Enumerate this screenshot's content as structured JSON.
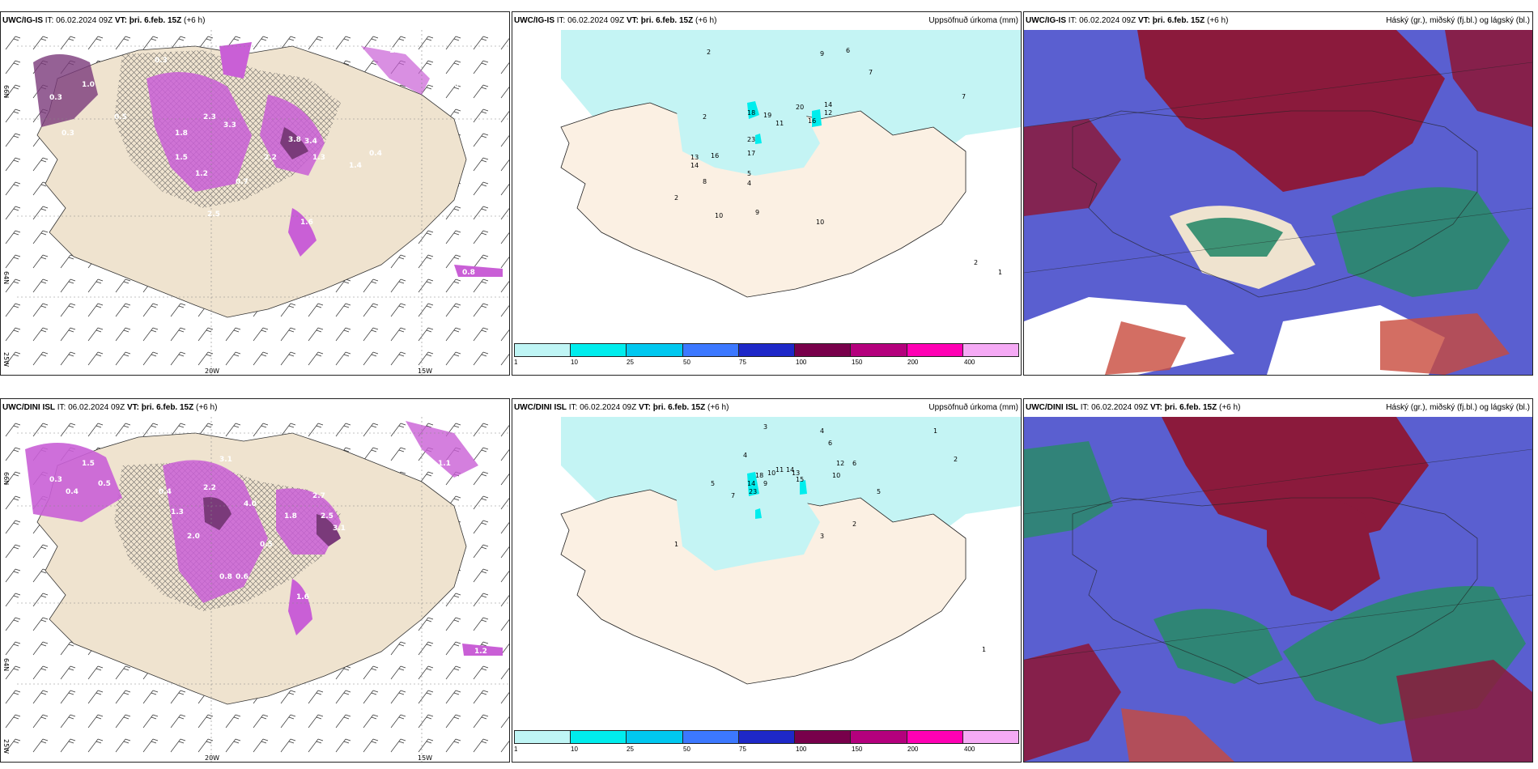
{
  "panels": [
    {
      "model": "UWC/IG-IS",
      "it": "IT: 06.02.2024 09Z",
      "vt_label": "VT:",
      "vt": "þri. 6.feb. 15Z",
      "lead": "(+6 h)",
      "title": ""
    },
    {
      "model": "UWC/IG-IS",
      "it": "IT: 06.02.2024 09Z",
      "vt_label": "VT:",
      "vt": "þri. 6.feb. 15Z",
      "lead": "(+6 h)",
      "title": "Uppsöfnuð úrkoma (mm)"
    },
    {
      "model": "UWC/IG-IS",
      "it": "IT: 06.02.2024 09Z",
      "vt_label": "VT:",
      "vt": "þri. 6.feb. 15Z",
      "lead": "(+6 h)",
      "title": "Háský (gr.), miðský (fj.bl.) og lágský (bl.)"
    },
    {
      "model": "UWC/DINI ISL",
      "it": "IT: 06.02.2024 09Z",
      "vt_label": "VT:",
      "vt": "þri. 6.feb. 15Z",
      "lead": "(+6 h)",
      "title": ""
    },
    {
      "model": "UWC/DINI ISL",
      "it": "IT: 06.02.2024 09Z",
      "vt_label": "VT:",
      "vt": "þri. 6.feb. 15Z",
      "lead": "(+6 h)",
      "title": "Uppsöfnuð úrkoma (mm)"
    },
    {
      "model": "UWC/DINI ISL",
      "it": "IT: 06.02.2024 09Z",
      "vt_label": "VT:",
      "vt": "þri. 6.feb. 15Z",
      "lead": "(+6 h)",
      "title": "Háský (gr.), miðský (fj.bl.) og lágský (bl.)"
    }
  ],
  "grid_labels": {
    "lon_20": "20W",
    "lon_15": "15W",
    "lat_66": "66N",
    "lat_64": "64N",
    "lat_25w": "25W"
  },
  "precip_colorbar": {
    "colors": [
      "#bff5f5",
      "#00eded",
      "#00c8f0",
      "#3c78ff",
      "#1e28c8",
      "#78004b",
      "#b4007d",
      "#ff00b4",
      "#f5aaf5"
    ],
    "labels": [
      "1",
      "10",
      "25",
      "50",
      "75",
      "100",
      "150",
      "200",
      "400"
    ]
  },
  "snow_values_top": [
    "0.3",
    "1.0",
    "0.3",
    "1.8",
    "2.3",
    "3.3",
    "3.8",
    "3.4",
    "2.2",
    "1.3",
    "0.4",
    "1.4",
    "2.5",
    "1.6",
    "1.0",
    "0.8",
    "0.5",
    "1.5",
    "1.2",
    "0.7",
    "0.3",
    "1.8",
    "1.0"
  ],
  "snow_values_bottom": [
    "0.3",
    "0.4",
    "1.5",
    "0.5",
    "3.1",
    "2.2",
    "4.0",
    "2.5",
    "3.1",
    "1.8",
    "2.0",
    "1.3",
    "0.6",
    "1.6",
    "0.5",
    "1.2",
    "0.4",
    "0.8",
    "2.7",
    "1.1"
  ],
  "precip_values_top": [
    "2",
    "9",
    "6",
    "7",
    "7",
    "2",
    "18",
    "19",
    "20",
    "16",
    "14",
    "12",
    "23",
    "13",
    "8",
    "16",
    "14",
    "17",
    "5",
    "4",
    "2",
    "10",
    "9",
    "10",
    "11",
    "2",
    "1"
  ],
  "precip_values_bottom": [
    "3",
    "4",
    "6",
    "4",
    "5",
    "18",
    "10",
    "14",
    "15",
    "13",
    "11",
    "12",
    "6",
    "10",
    "23",
    "14",
    "9",
    "5",
    "2",
    "3",
    "1",
    "7",
    "1",
    "2",
    "1"
  ],
  "colors": {
    "land": "#efe3cf",
    "cyan": "#c4f4f4",
    "snow": "#c95fd6",
    "snow_dark": "#7a3a7a",
    "cloud_red": "#8b1a3c",
    "cloud_blue": "#5a5fd0",
    "cloud_green": "#2a8a6a"
  }
}
